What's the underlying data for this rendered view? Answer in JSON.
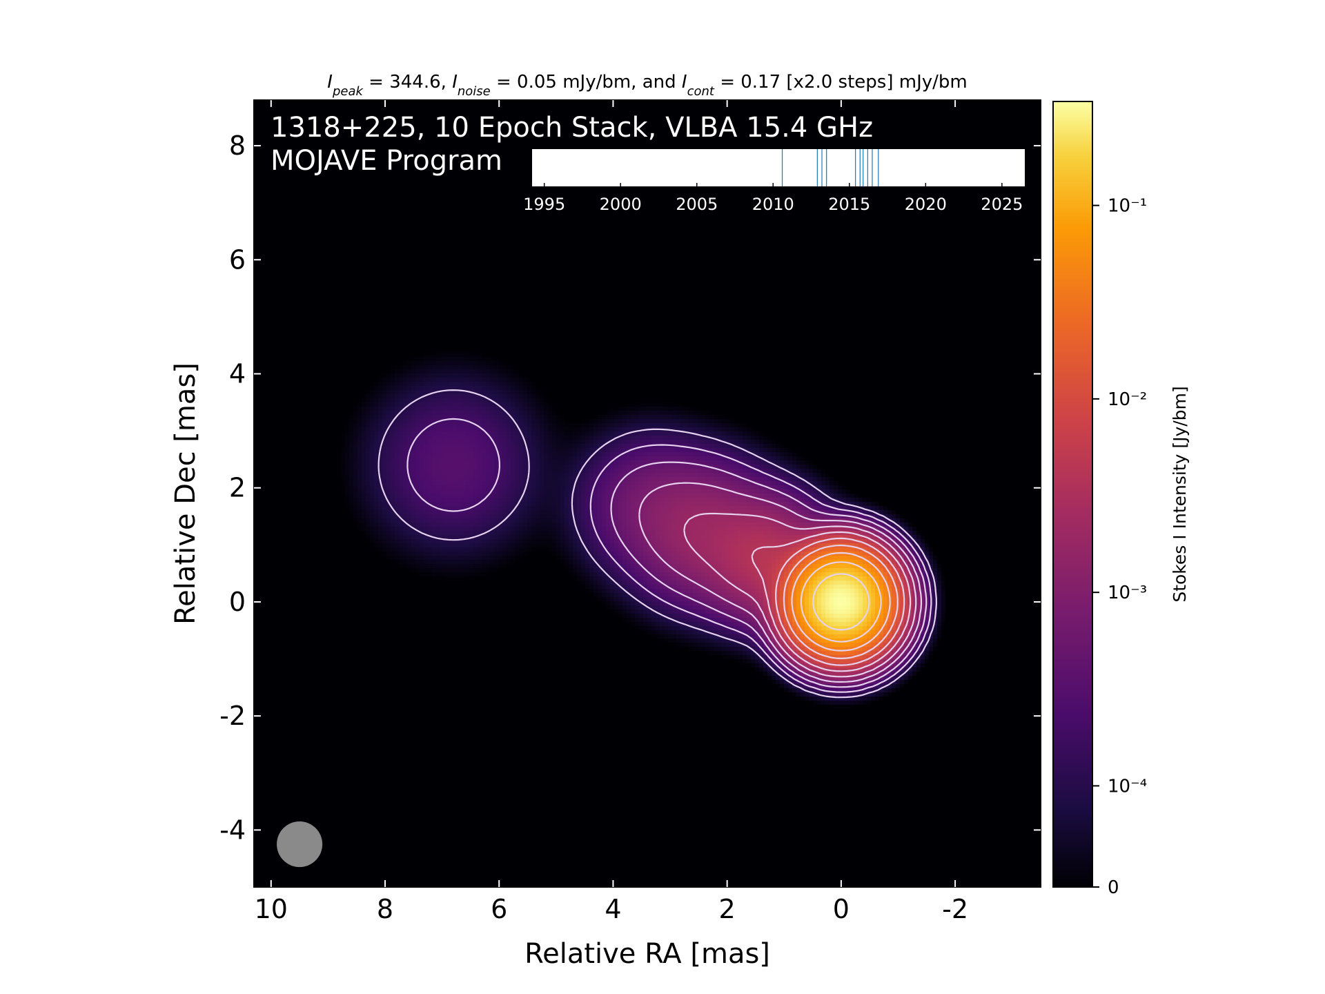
{
  "chart_data": {
    "type": "heatmap",
    "title_parts": [
      {
        "sym": "I",
        "sub": "peak",
        "text": " = 344.6, "
      },
      {
        "sym": "I",
        "sub": "noise",
        "text": " = 0.05 mJy/bm, and "
      },
      {
        "sym": "I",
        "sub": "cont",
        "text": " = 0.17 [x2.0 steps] mJy/bm"
      }
    ],
    "annotation_lines": [
      "1318+225, 10 Epoch Stack, VLBA 15.4 GHz",
      "MOJAVE Program"
    ],
    "xlabel": "Relative RA [mas]",
    "ylabel": "Relative Dec [mas]",
    "xlim": [
      10.3,
      -3.5
    ],
    "ylim": [
      -5.0,
      8.8
    ],
    "x_ticks": [
      10,
      8,
      6,
      4,
      2,
      0,
      -2
    ],
    "y_ticks": [
      8,
      6,
      4,
      2,
      0,
      -2,
      -4
    ],
    "colorbar": {
      "label": "Stokes I Intensity [Jy/bm]",
      "scale": "log (with linear zero)",
      "ticks": [
        {
          "value": 0,
          "label": "0"
        },
        {
          "value": 0.0001,
          "label": "10⁻⁴"
        },
        {
          "value": 0.001,
          "label": "10⁻³"
        },
        {
          "value": 0.01,
          "label": "10⁻²"
        },
        {
          "value": 0.1,
          "label": "10⁻¹"
        }
      ],
      "colormap": "inferno"
    },
    "peak_jy": 0.3446,
    "contours": {
      "base_mjy": 0.17,
      "step_factor": 2.0,
      "color": "#e6d2ee"
    },
    "emission_components": [
      {
        "x": 0.0,
        "y": 0.0,
        "peak": 0.3446,
        "sigma": 0.42
      },
      {
        "x": 1.3,
        "y": 0.75,
        "peak": 0.005,
        "sigma": 0.55
      },
      {
        "x": 2.4,
        "y": 1.2,
        "peak": 0.0025,
        "sigma": 0.65
      },
      {
        "x": 3.4,
        "y": 1.7,
        "peak": 0.0009,
        "sigma": 0.65
      },
      {
        "x": 6.8,
        "y": 2.4,
        "peak": 0.0005,
        "sigma": 0.8
      }
    ],
    "beam": {
      "x": 9.5,
      "y": -4.25,
      "major_mas": 0.8,
      "minor_mas": 0.8,
      "color": "#8a8a8a"
    },
    "epoch_timeline": {
      "xlim": [
        1994.2,
        2026.5
      ],
      "ticks": [
        1995,
        2000,
        2005,
        2010,
        2015,
        2020,
        2025
      ],
      "epochs": [
        2010.6,
        2012.9,
        2013.2,
        2013.5,
        2015.4,
        2015.7,
        2015.9,
        2016.2,
        2016.5,
        2016.9
      ],
      "line_color": "#1f77b4"
    },
    "colors": {
      "background": "#000004",
      "foreground_text": "#ffffff"
    }
  }
}
